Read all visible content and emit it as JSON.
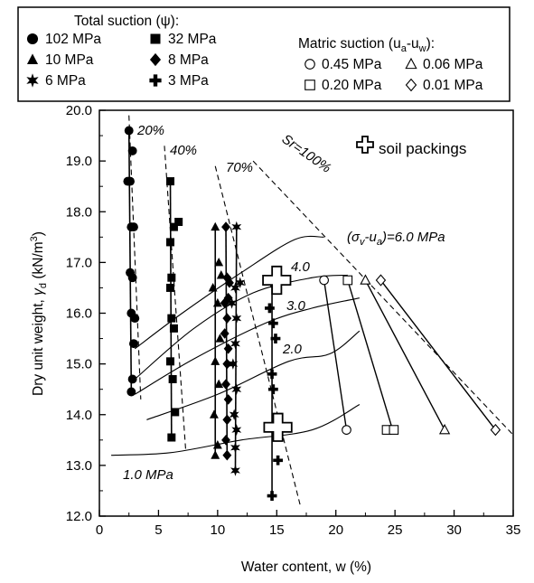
{
  "chart_data": {
    "type": "scatter",
    "xlabel": "Water content, w (%)",
    "ylabel": "Dry unit weight, γd (kN/m3)",
    "ylabel_parts": {
      "prefix": "Dry unit weight, ",
      "symbol": "γ",
      "sub": "d",
      "mid": " (kN/m",
      "sup": "3",
      "end": ")"
    },
    "xlim": [
      0,
      35
    ],
    "ylim": [
      12.0,
      20.0
    ],
    "x_ticks": [
      "0",
      "5",
      "10",
      "15",
      "20",
      "25",
      "30",
      "35"
    ],
    "y_ticks": [
      "12.0",
      "13.0",
      "14.0",
      "15.0",
      "16.0",
      "17.0",
      "18.0",
      "19.0",
      "20.0"
    ],
    "grid": false,
    "legend": {
      "total_title": "Total suction (ψ):",
      "total_items": [
        {
          "label": "102 MPa",
          "marker": "circle"
        },
        {
          "label": "32 MPa",
          "marker": "square"
        },
        {
          "label": "10 MPa",
          "marker": "triangle"
        },
        {
          "label": "8 MPa",
          "marker": "diamond"
        },
        {
          "label": "6 MPa",
          "marker": "star"
        },
        {
          "label": "3 MPa",
          "marker": "cross"
        }
      ],
      "matric_title": "Matric suction (ua-uw):",
      "matric_parts": {
        "prefix": "Matric suction (u",
        "a": "a",
        "dash": "-u",
        "w": "w",
        "end": "):"
      },
      "matric_items": [
        {
          "label": "0.45 MPa",
          "marker": "circle-open"
        },
        {
          "label": "0.06 MPa",
          "marker": "triangle-open"
        },
        {
          "label": "0.20 MPa",
          "marker": "square-open"
        },
        {
          "label": "0.01 MPa",
          "marker": "diamond-open"
        }
      ]
    },
    "soil_packings_label": "soil packings",
    "series": [
      {
        "name": "102 MPa",
        "marker": "circle",
        "filled": true,
        "points": [
          [
            2.5,
            19.6
          ],
          [
            2.8,
            19.2
          ],
          [
            2.4,
            18.6
          ],
          [
            2.6,
            18.6
          ],
          [
            2.7,
            17.7
          ],
          [
            2.9,
            17.7
          ],
          [
            2.6,
            16.8
          ],
          [
            2.8,
            16.7
          ],
          [
            2.7,
            16.0
          ],
          [
            3.0,
            15.9
          ],
          [
            2.9,
            15.4
          ],
          [
            2.8,
            14.7
          ],
          [
            2.7,
            14.45
          ]
        ]
      },
      {
        "name": "32 MPa",
        "marker": "square",
        "filled": true,
        "points": [
          [
            6.0,
            18.6
          ],
          [
            6.7,
            17.8
          ],
          [
            6.3,
            17.7
          ],
          [
            6.0,
            17.4
          ],
          [
            6.1,
            16.7
          ],
          [
            6.0,
            16.5
          ],
          [
            6.1,
            15.9
          ],
          [
            6.3,
            15.7
          ],
          [
            6.0,
            15.05
          ],
          [
            6.2,
            14.7
          ],
          [
            6.4,
            14.05
          ],
          [
            6.1,
            13.55
          ]
        ]
      },
      {
        "name": "10 MPa",
        "marker": "triangle",
        "filled": true,
        "points": [
          [
            9.8,
            17.7
          ],
          [
            10.1,
            17.0
          ],
          [
            10.3,
            16.75
          ],
          [
            9.6,
            16.5
          ],
          [
            10.0,
            16.2
          ],
          [
            10.2,
            15.5
          ],
          [
            9.8,
            15.05
          ],
          [
            10.1,
            14.6
          ],
          [
            9.7,
            14.0
          ],
          [
            10.0,
            13.4
          ],
          [
            9.8,
            13.2
          ]
        ]
      },
      {
        "name": "8 MPa",
        "marker": "diamond",
        "filled": true,
        "points": [
          [
            10.7,
            17.7
          ],
          [
            10.8,
            16.7
          ],
          [
            11.0,
            16.6
          ],
          [
            10.9,
            16.3
          ],
          [
            10.6,
            16.2
          ],
          [
            10.8,
            15.9
          ],
          [
            10.6,
            15.6
          ],
          [
            10.9,
            15.3
          ],
          [
            10.8,
            15.0
          ],
          [
            10.7,
            14.6
          ],
          [
            10.9,
            14.3
          ],
          [
            10.8,
            13.9
          ],
          [
            10.7,
            13.5
          ],
          [
            10.8,
            13.2
          ]
        ]
      },
      {
        "name": "6 MPa",
        "marker": "star",
        "filled": true,
        "points": [
          [
            11.6,
            17.7
          ],
          [
            11.9,
            16.6
          ],
          [
            11.5,
            16.5
          ],
          [
            11.2,
            16.2
          ],
          [
            11.6,
            15.9
          ],
          [
            11.5,
            15.4
          ],
          [
            11.3,
            15.0
          ],
          [
            11.6,
            14.5
          ],
          [
            11.4,
            14.0
          ],
          [
            11.6,
            13.7
          ],
          [
            11.5,
            13.35
          ],
          [
            11.5,
            12.9
          ]
        ]
      },
      {
        "name": "3 MPa",
        "marker": "cross",
        "filled": true,
        "points": [
          [
            14.6,
            16.6
          ],
          [
            14.4,
            16.1
          ],
          [
            14.7,
            15.8
          ],
          [
            14.9,
            15.5
          ],
          [
            14.6,
            14.8
          ],
          [
            14.7,
            14.5
          ],
          [
            14.8,
            13.75
          ],
          [
            15.1,
            13.1
          ],
          [
            14.6,
            12.4
          ]
        ]
      },
      {
        "name": "0.45 MPa",
        "marker": "circle-open",
        "filled": false,
        "points": [
          [
            19.0,
            16.65
          ],
          [
            20.9,
            13.7
          ]
        ]
      },
      {
        "name": "0.20 MPa",
        "marker": "square-open",
        "filled": false,
        "points": [
          [
            21.0,
            16.65
          ],
          [
            24.3,
            13.7
          ],
          [
            24.9,
            13.7
          ]
        ]
      },
      {
        "name": "0.06 MPa",
        "marker": "triangle-open",
        "filled": false,
        "points": [
          [
            22.5,
            16.65
          ],
          [
            29.2,
            13.7
          ]
        ]
      },
      {
        "name": "0.01 MPa",
        "marker": "diamond-open",
        "filled": false,
        "points": [
          [
            23.8,
            16.65
          ],
          [
            33.5,
            13.7
          ]
        ]
      },
      {
        "name": "soil packings",
        "marker": "open-cross",
        "filled": false,
        "points": [
          [
            15.0,
            16.65
          ],
          [
            15.1,
            13.75
          ]
        ]
      }
    ],
    "stress_lines": [
      {
        "label": "(σv-ua)=6.0 MPa",
        "points": [
          [
            3.0,
            15.3
          ],
          [
            7.0,
            16.0
          ],
          [
            12.0,
            16.8
          ],
          [
            16.5,
            17.45
          ],
          [
            19.0,
            17.5
          ]
        ]
      },
      {
        "label": "4.0",
        "points": [
          [
            3.0,
            14.7
          ],
          [
            8.0,
            15.7
          ],
          [
            13.0,
            16.4
          ],
          [
            18.0,
            16.7
          ],
          [
            21.0,
            16.75
          ]
        ]
      },
      {
        "label": "3.0",
        "points": [
          [
            3.0,
            14.4
          ],
          [
            8.0,
            15.1
          ],
          [
            14.0,
            15.8
          ],
          [
            18.0,
            16.1
          ],
          [
            22.0,
            16.3
          ]
        ]
      },
      {
        "label": "2.0",
        "points": [
          [
            4.0,
            13.9
          ],
          [
            10.0,
            14.4
          ],
          [
            16.0,
            15.05
          ],
          [
            19.5,
            15.2
          ],
          [
            22.0,
            15.65
          ]
        ]
      },
      {
        "label": "1.0 MPa",
        "points": [
          [
            1.0,
            13.2
          ],
          [
            6.0,
            13.25
          ],
          [
            12.0,
            13.5
          ],
          [
            18.0,
            13.7
          ],
          [
            22.0,
            14.2
          ]
        ]
      }
    ],
    "saturation_lines": [
      {
        "label": "20%",
        "points": [
          [
            2.5,
            19.9
          ],
          [
            3.5,
            14.3
          ]
        ]
      },
      {
        "label": "40%",
        "points": [
          [
            5.5,
            19.3
          ],
          [
            7.3,
            13.3
          ]
        ]
      },
      {
        "label": "70%",
        "points": [
          [
            9.8,
            18.9
          ],
          [
            17.0,
            12.2
          ]
        ]
      },
      {
        "label": "Sr=100%",
        "points": [
          [
            13.0,
            19.0
          ],
          [
            35.0,
            13.6
          ]
        ]
      }
    ],
    "wetting_lines": [
      {
        "points": [
          [
            19.0,
            16.65
          ],
          [
            20.9,
            13.7
          ]
        ]
      },
      {
        "points": [
          [
            21.0,
            16.65
          ],
          [
            24.8,
            13.7
          ]
        ]
      },
      {
        "points": [
          [
            22.5,
            16.65
          ],
          [
            29.2,
            13.7
          ]
        ]
      },
      {
        "points": [
          [
            23.8,
            16.65
          ],
          [
            33.5,
            13.7
          ]
        ]
      }
    ],
    "annotations": {
      "stress6": "(σv-ua)=6.0 MPa",
      "stress6_parts": {
        "p1": "(",
        "sigma": "σ",
        "v": "v",
        "mid": "-u",
        "a": "a",
        "end": ")=6.0 MPa"
      },
      "stress4": "4.0",
      "stress3": "3.0",
      "stress2": "2.0",
      "stress1": "1.0 MPa",
      "sr20": "20%",
      "sr40": "40%",
      "sr70": "70%",
      "sr100": "Sr=100%"
    }
  }
}
